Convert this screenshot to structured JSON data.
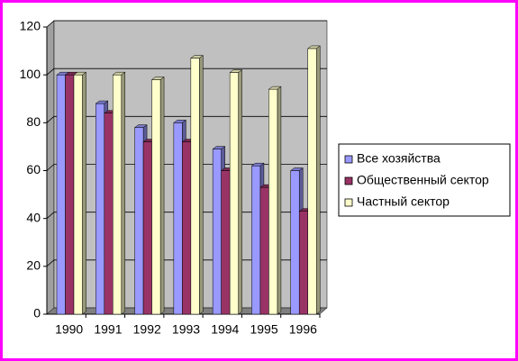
{
  "chart_data": {
    "type": "bar3d",
    "categories": [
      "1990",
      "1991",
      "1992",
      "1993",
      "1994",
      "1995",
      "1996"
    ],
    "series": [
      {
        "name": "Все хозяйства",
        "color": "#9999ff",
        "values": [
          100,
          88,
          78,
          80,
          69,
          62,
          60
        ]
      },
      {
        "name": "Общественный сектор",
        "color": "#993366",
        "values": [
          100,
          84,
          72,
          72,
          60,
          53,
          43
        ]
      },
      {
        "name": "Частный сектор",
        "color": "#ffffcc",
        "values": [
          100,
          100,
          98,
          107,
          101,
          94,
          111
        ]
      }
    ],
    "ylim": [
      0,
      120
    ],
    "yticks": [
      0,
      20,
      40,
      60,
      80,
      100,
      120
    ],
    "grid": true,
    "legend": "right"
  }
}
